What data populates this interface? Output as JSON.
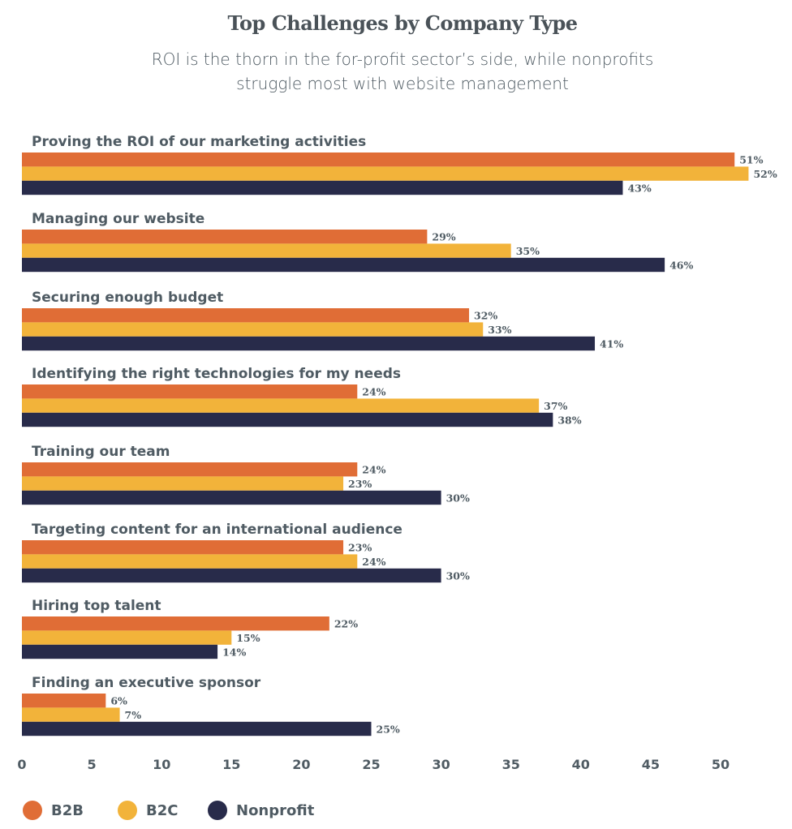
{
  "chart_data": {
    "type": "bar",
    "orientation": "horizontal",
    "title": "Top Challenges by Company Type",
    "subtitle": [
      "ROI is the thorn in the for-profit sector’s side, while nonprofits",
      "struggle most with website management"
    ],
    "categories": [
      "Proving the ROI of our marketing activities",
      "Managing our website",
      "Securing enough budget",
      "Identifying the right technologies for my needs",
      "Training our team",
      "Targeting content for an international audience",
      "Hiring top talent",
      "Finding an executive sponsor"
    ],
    "series": [
      {
        "name": "B2B",
        "color": "#E06D36",
        "values": [
          51,
          29,
          32,
          24,
          24,
          23,
          22,
          6
        ]
      },
      {
        "name": "B2C",
        "color": "#F2B33A",
        "values": [
          52,
          35,
          33,
          37,
          23,
          24,
          15,
          7
        ]
      },
      {
        "name": "Nonprofit",
        "color": "#282B4A",
        "values": [
          43,
          46,
          41,
          38,
          30,
          30,
          14,
          25
        ]
      }
    ],
    "value_suffix": "%",
    "xlim": [
      0,
      52
    ],
    "xticks": [
      0,
      5,
      10,
      15,
      20,
      25,
      30,
      35,
      40,
      45,
      50
    ],
    "grid": false,
    "legend_position": "bottom-left"
  }
}
